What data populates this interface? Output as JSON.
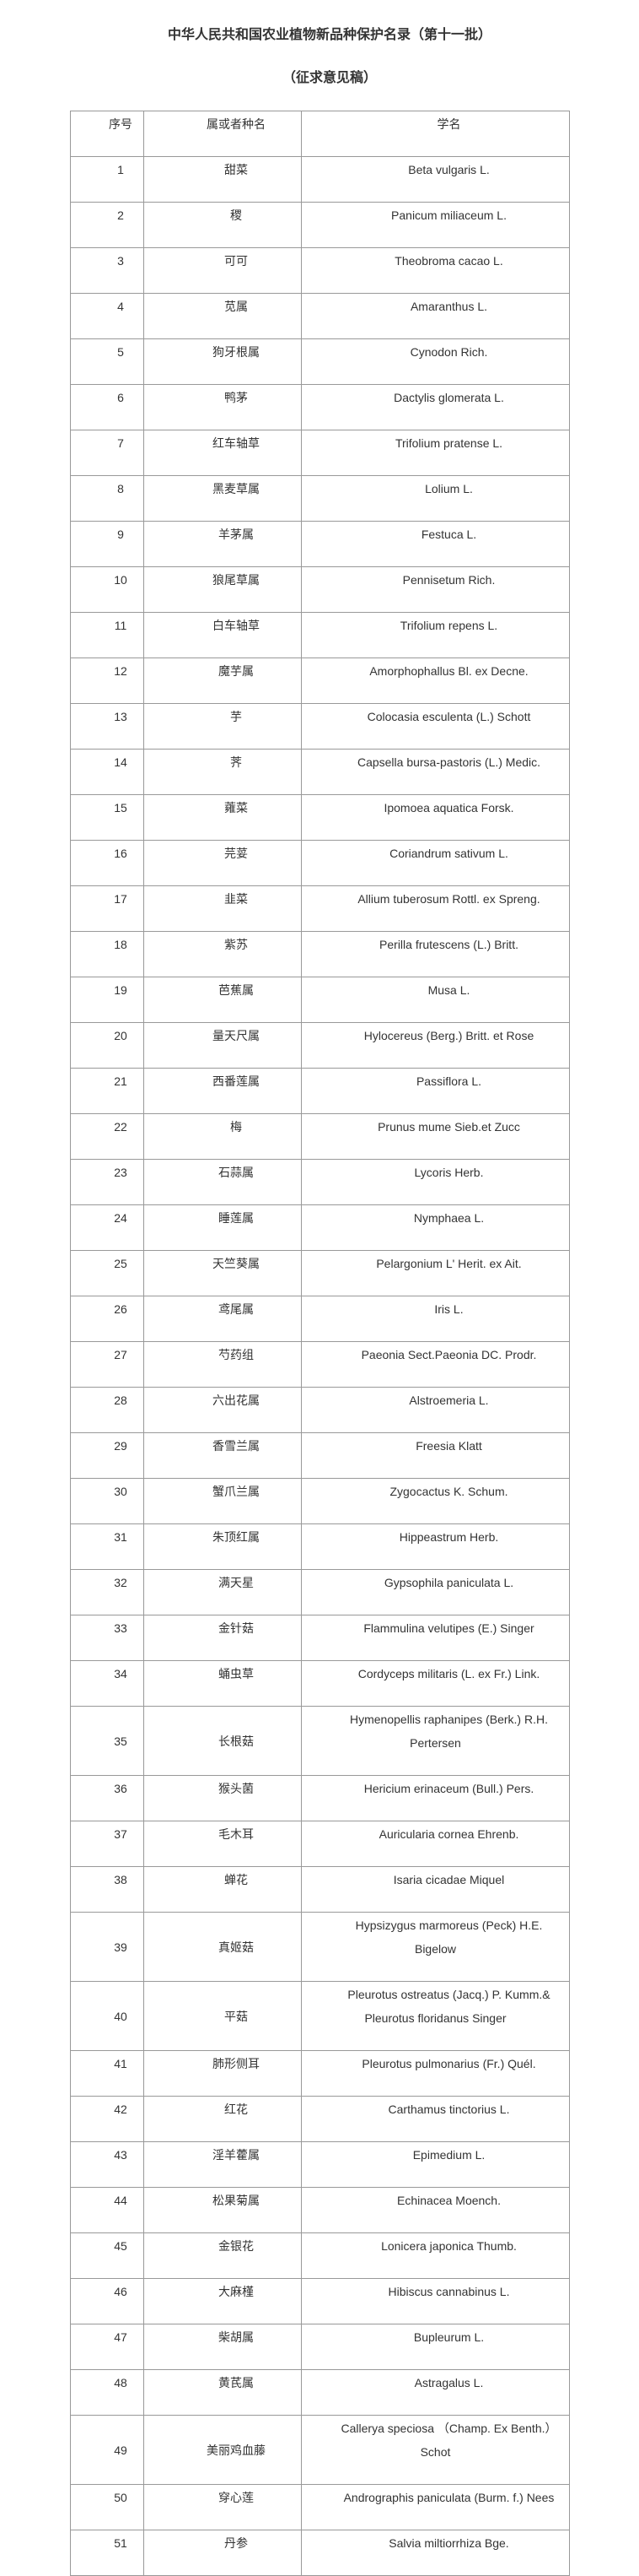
{
  "document": {
    "title": "中华人民共和国农业植物新品种保护名录（第十一批）",
    "subtitle": "（征求意见稿）"
  },
  "table": {
    "headers": [
      "序号",
      "属或者种名",
      "学名"
    ],
    "rows": [
      {
        "no": "1",
        "name": "甜菜",
        "latin": "Beta vulgaris L."
      },
      {
        "no": "2",
        "name": "稷",
        "latin": "Panicum miliaceum L."
      },
      {
        "no": "3",
        "name": "可可",
        "latin": "Theobroma cacao L."
      },
      {
        "no": "4",
        "name": "苋属",
        "latin": "Amaranthus L."
      },
      {
        "no": "5",
        "name": "狗牙根属",
        "latin": "Cynodon Rich."
      },
      {
        "no": "6",
        "name": "鸭茅",
        "latin": "Dactylis glomerata L."
      },
      {
        "no": "7",
        "name": "红车轴草",
        "latin": "Trifolium pratense L."
      },
      {
        "no": "8",
        "name": "黑麦草属",
        "latin": "Lolium L."
      },
      {
        "no": "9",
        "name": "羊茅属",
        "latin": "Festuca L."
      },
      {
        "no": "10",
        "name": "狼尾草属",
        "latin": "Pennisetum Rich."
      },
      {
        "no": "11",
        "name": "白车轴草",
        "latin": "Trifolium repens L."
      },
      {
        "no": "12",
        "name": "魔芋属",
        "latin": "Amorphophallus Bl. ex Decne."
      },
      {
        "no": "13",
        "name": "芋",
        "latin": "Colocasia esculenta (L.) Schott"
      },
      {
        "no": "14",
        "name": "荠",
        "latin": "Capsella bursa-pastoris (L.) Medic."
      },
      {
        "no": "15",
        "name": "蕹菜",
        "latin": "Ipomoea aquatica Forsk."
      },
      {
        "no": "16",
        "name": "芫荽",
        "latin": "Coriandrum sativum L."
      },
      {
        "no": "17",
        "name": "韭菜",
        "latin": "Allium tuberosum Rottl. ex Spreng."
      },
      {
        "no": "18",
        "name": "紫苏",
        "latin": "Perilla frutescens (L.) Britt."
      },
      {
        "no": "19",
        "name": "芭蕉属",
        "latin": "Musa L."
      },
      {
        "no": "20",
        "name": "量天尺属",
        "latin": "Hylocereus (Berg.) Britt. et Rose"
      },
      {
        "no": "21",
        "name": "西番莲属",
        "latin": "Passiflora L."
      },
      {
        "no": "22",
        "name": "梅",
        "latin": "Prunus mume Sieb.et Zucc"
      },
      {
        "no": "23",
        "name": "石蒜属",
        "latin": "Lycoris Herb."
      },
      {
        "no": "24",
        "name": "睡莲属",
        "latin": "Nymphaea L."
      },
      {
        "no": "25",
        "name": "天竺葵属",
        "latin": "Pelargonium L' Herit. ex Ait."
      },
      {
        "no": "26",
        "name": "鸢尾属",
        "latin": "Iris L."
      },
      {
        "no": "27",
        "name": "芍药组",
        "latin": "Paeonia Sect.Paeonia DC. Prodr."
      },
      {
        "no": "28",
        "name": "六出花属",
        "latin": "Alstroemeria L."
      },
      {
        "no": "29",
        "name": "香雪兰属",
        "latin": "Freesia Klatt"
      },
      {
        "no": "30",
        "name": "蟹爪兰属",
        "latin": "Zygocactus K. Schum."
      },
      {
        "no": "31",
        "name": "朱顶红属",
        "latin": "Hippeastrum Herb."
      },
      {
        "no": "32",
        "name": "满天星",
        "latin": "Gypsophila paniculata L."
      },
      {
        "no": "33",
        "name": "金针菇",
        "latin": "Flammulina velutipes (E.) Singer"
      },
      {
        "no": "34",
        "name": "蛹虫草",
        "latin": "Cordyceps militaris (L. ex Fr.) Link."
      },
      {
        "no": "35",
        "name": "长根菇",
        "latin": "Hymenopellis raphanipes (Berk.) R.H.\nPertersen"
      },
      {
        "no": "36",
        "name": "猴头菌",
        "latin": "Hericium erinaceum (Bull.) Pers."
      },
      {
        "no": "37",
        "name": "毛木耳",
        "latin": "Auricularia cornea Ehrenb."
      },
      {
        "no": "38",
        "name": "蝉花",
        "latin": "Isaria cicadae Miquel"
      },
      {
        "no": "39",
        "name": "真姬菇",
        "latin": "Hypsizygus marmoreus (Peck) H.E.\nBigelow"
      },
      {
        "no": "40",
        "name": "平菇",
        "latin": "Pleurotus ostreatus (Jacq.) P. Kumm.&\nPleurotus floridanus Singer"
      },
      {
        "no": "41",
        "name": "肺形侧耳",
        "latin": "Pleurotus pulmonarius (Fr.) Quél."
      },
      {
        "no": "42",
        "name": "红花",
        "latin": "Carthamus tinctorius L."
      },
      {
        "no": "43",
        "name": "淫羊藿属",
        "latin": "Epimedium L."
      },
      {
        "no": "44",
        "name": "松果菊属",
        "latin": "Echinacea Moench."
      },
      {
        "no": "45",
        "name": "金银花",
        "latin": "Lonicera japonica Thumb."
      },
      {
        "no": "46",
        "name": "大麻槿",
        "latin": "Hibiscus cannabinus L."
      },
      {
        "no": "47",
        "name": "柴胡属",
        "latin": "Bupleurum L."
      },
      {
        "no": "48",
        "name": "黄芪属",
        "latin": "Astragalus L."
      },
      {
        "no": "49",
        "name": "美丽鸡血藤",
        "latin": "Callerya speciosa （Champ. Ex Benth.）\nSchot"
      },
      {
        "no": "50",
        "name": "穿心莲",
        "latin": "Andrographis paniculata (Burm. f.) Nees"
      },
      {
        "no": "51",
        "name": "丹参",
        "latin": "Salvia miltiorrhiza Bge."
      }
    ]
  }
}
